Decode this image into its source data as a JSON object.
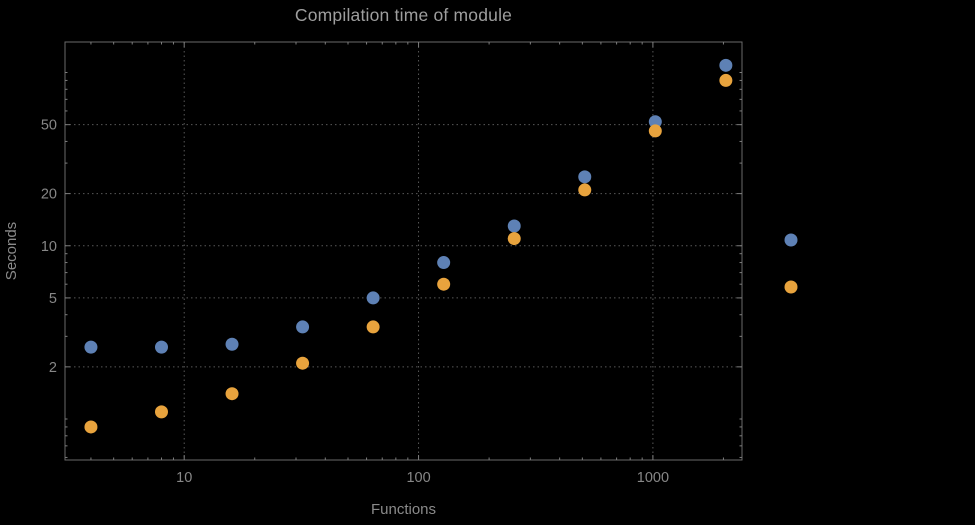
{
  "title": "Compilation time of module",
  "colors": {
    "background": "#000000",
    "frame": "#6a6a6a",
    "grid": "#585858",
    "tick": "#7d7d7d",
    "tick_label": "#878787",
    "title": "#9e9e9e",
    "axis_label": "#8a8a8a",
    "series_blue": "#5e81b5",
    "series_orange": "#e8a33d"
  },
  "chart_data": {
    "type": "scatter",
    "title": "Compilation time of module",
    "xlabel": "Functions",
    "ylabel": "Seconds",
    "x_scale": "log",
    "y_scale": "log",
    "grid": "dotted",
    "legend_position": "right-outside",
    "xlim": [
      3.1,
      2400
    ],
    "ylim": [
      0.58,
      150
    ],
    "x_ticks": [
      10,
      100,
      1000
    ],
    "y_ticks": [
      2,
      5,
      10,
      20,
      50
    ],
    "x": [
      4,
      8,
      16,
      32,
      64,
      128,
      256,
      512,
      1024,
      2048
    ],
    "series": [
      {
        "name": "blue",
        "color": "#5e81b5",
        "values": [
          2.6,
          2.6,
          2.7,
          3.4,
          5.0,
          8.0,
          13,
          25,
          52,
          110
        ]
      },
      {
        "name": "orange",
        "color": "#e8a33d",
        "values": [
          0.9,
          1.1,
          1.4,
          2.1,
          3.4,
          6.0,
          11,
          21,
          46,
          90
        ]
      }
    ]
  }
}
